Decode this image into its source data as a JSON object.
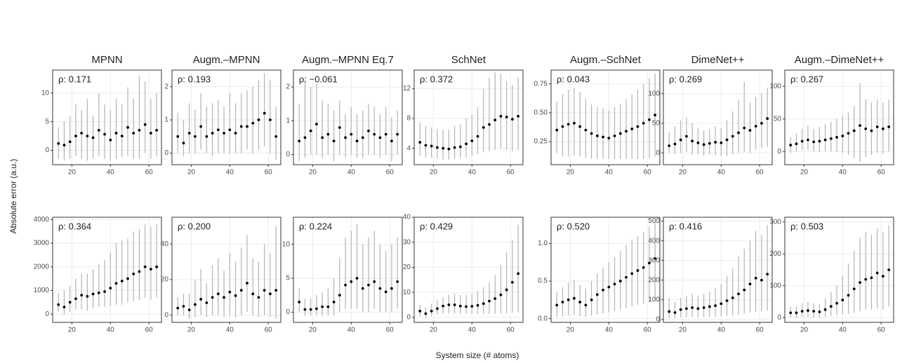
{
  "axis_labels": {
    "x": "System size (# atoms)",
    "y": "Absolute error (a.u.)"
  },
  "chart_data": [
    {
      "type": "scatter",
      "title": "MPNN",
      "annotation": "ρ: 0.171",
      "x": [
        13,
        16,
        19,
        22,
        25,
        28,
        31,
        34,
        37,
        40,
        43,
        46,
        49,
        52,
        55,
        58,
        61,
        64
      ],
      "values": [
        1.2,
        0.9,
        1.5,
        2.5,
        3.0,
        2.5,
        2.2,
        3.5,
        2.8,
        1.8,
        3.0,
        2.5,
        4.0,
        3.0,
        3.5,
        4.5,
        3.0,
        3.5
      ],
      "lower": [
        -1.5,
        -1.8,
        -1.5,
        -1,
        -1.5,
        -1.8,
        -1.5,
        -1,
        -1.5,
        -1.8,
        -1.5,
        -1.2,
        -1,
        -1.5,
        -1.5,
        -0.5,
        -1.5,
        -1
      ],
      "upper": [
        4,
        5,
        6,
        8,
        7,
        9,
        6,
        10,
        8,
        7,
        9,
        8,
        11,
        9,
        13,
        12,
        9,
        10
      ],
      "xlim": [
        10,
        66.5
      ],
      "xticks": [
        20,
        40,
        60
      ],
      "ylim": [
        -2.5,
        14
      ],
      "yticks": [
        0,
        5,
        10
      ]
    },
    {
      "type": "scatter",
      "title": "Augm.–MPNN",
      "annotation": "ρ: 0.193",
      "x": [
        13,
        16,
        19,
        22,
        25,
        28,
        31,
        34,
        37,
        40,
        43,
        46,
        49,
        52,
        55,
        58,
        61,
        64
      ],
      "values": [
        0.5,
        0.3,
        0.6,
        0.5,
        0.8,
        0.5,
        0.6,
        0.7,
        0.6,
        0.7,
        0.6,
        0.8,
        0.8,
        0.9,
        1.0,
        1.2,
        1.0,
        0.5
      ],
      "lower": [
        0,
        -0.1,
        0,
        0,
        0.1,
        0,
        -0.1,
        0,
        0,
        0,
        0,
        0,
        0.1,
        0,
        0.1,
        0.2,
        0,
        -0.2
      ],
      "upper": [
        1.2,
        1.0,
        1.5,
        1.3,
        1.8,
        1.4,
        1.5,
        1.6,
        1.4,
        1.8,
        1.5,
        1.8,
        1.9,
        2.0,
        2.2,
        2.4,
        2.2,
        1.4
      ],
      "xlim": [
        10,
        66.5
      ],
      "xticks": [
        20,
        40,
        60
      ],
      "ylim": [
        -0.35,
        2.5
      ],
      "yticks": [
        0,
        1,
        2
      ]
    },
    {
      "type": "scatter",
      "title": "Augm.–MPNN Eq.7",
      "annotation": "ρ: −0.061",
      "x": [
        13,
        16,
        19,
        22,
        25,
        28,
        31,
        34,
        37,
        40,
        43,
        46,
        49,
        52,
        55,
        58,
        61,
        64
      ],
      "values": [
        0.4,
        0.5,
        0.7,
        0.9,
        0.5,
        0.6,
        0.4,
        0.8,
        0.5,
        0.6,
        0.4,
        0.5,
        0.7,
        0.6,
        0.5,
        0.6,
        0.4,
        0.6
      ],
      "lower": [
        -0.2,
        -0.1,
        0,
        0,
        -0.1,
        0,
        -0.2,
        0,
        -0.1,
        0,
        -0.1,
        -0.1,
        0,
        0,
        -0.1,
        0,
        -0.2,
        0
      ],
      "upper": [
        1.5,
        2.2,
        2.0,
        2.1,
        1.6,
        1.5,
        1.3,
        1.6,
        1.2,
        1.4,
        1.2,
        1.3,
        1.5,
        1.4,
        1.2,
        1.4,
        1.1,
        1.3
      ],
      "xlim": [
        10,
        66.5
      ],
      "xticks": [
        20,
        40,
        60
      ],
      "ylim": [
        -0.3,
        2.5
      ],
      "yticks": [
        0,
        1,
        2
      ]
    },
    {
      "type": "scatter",
      "title": "SchNet",
      "annotation": "ρ: 0.372",
      "x": [
        13,
        16,
        19,
        22,
        25,
        28,
        31,
        34,
        37,
        40,
        43,
        46,
        49,
        52,
        55,
        58,
        61,
        64
      ],
      "values": [
        4.8,
        4.4,
        4.3,
        4.1,
        4.0,
        3.9,
        4.1,
        4.2,
        4.6,
        5.0,
        5.6,
        6.8,
        7.2,
        7.8,
        8.3,
        8.2,
        7.9,
        8.3
      ],
      "lower": [
        3,
        2.8,
        2.7,
        2.6,
        2.5,
        2.5,
        2.6,
        2.7,
        2.8,
        3.0,
        3.2,
        3.5,
        3.6,
        3.8,
        4.0,
        3.8,
        3.6,
        3.8
      ],
      "upper": [
        7.5,
        7.0,
        6.8,
        6.6,
        6.5,
        6.5,
        7.0,
        7.2,
        8.0,
        8.5,
        9.5,
        12,
        13.5,
        14.2,
        14,
        13,
        12.5,
        13.5
      ],
      "xlim": [
        10,
        66.5
      ],
      "xticks": [
        20,
        40,
        60
      ],
      "ylim": [
        1.8,
        14.5
      ],
      "yticks": [
        4,
        8,
        12
      ]
    },
    {
      "type": "scatter",
      "title": "Augm.–SchNet",
      "annotation": "ρ: 0.043",
      "x": [
        13,
        16,
        19,
        22,
        25,
        28,
        31,
        34,
        37,
        40,
        43,
        46,
        49,
        52,
        55,
        58,
        61,
        64
      ],
      "values": [
        0.35,
        0.38,
        0.4,
        0.41,
        0.38,
        0.35,
        0.32,
        0.3,
        0.29,
        0.28,
        0.3,
        0.32,
        0.34,
        0.36,
        0.38,
        0.41,
        0.44,
        0.48
      ],
      "lower": [
        0.15,
        0.12,
        0.12,
        0.13,
        0.12,
        0.11,
        0.1,
        0.1,
        0.1,
        0.1,
        0.1,
        0.1,
        0.1,
        0.1,
        0.1,
        0.1,
        0.11,
        0.12
      ],
      "upper": [
        0.6,
        0.66,
        0.7,
        0.72,
        0.68,
        0.62,
        0.57,
        0.55,
        0.54,
        0.52,
        0.55,
        0.58,
        0.62,
        0.66,
        0.7,
        0.75,
        0.8,
        0.84
      ],
      "xlim": [
        10,
        66.5
      ],
      "xticks": [
        20,
        40,
        60
      ],
      "ylim": [
        0.05,
        0.87
      ],
      "yticks": [
        0.25,
        {
          "value": 0.5,
          "label": "0.50"
        },
        0.75
      ]
    },
    {
      "type": "scatter",
      "title": "DimeNet++",
      "annotation": "ρ: 0.269",
      "x": [
        13,
        16,
        19,
        22,
        25,
        28,
        31,
        34,
        37,
        40,
        43,
        46,
        49,
        52,
        55,
        58,
        61,
        64
      ],
      "values": [
        12,
        15,
        22,
        28,
        20,
        17,
        14,
        16,
        18,
        17,
        22,
        28,
        34,
        42,
        38,
        45,
        50,
        58
      ],
      "lower": [
        0,
        -2,
        0,
        2,
        -3,
        -2,
        -5,
        -3,
        -4,
        -5,
        -5,
        -2,
        0,
        2,
        0,
        5,
        8,
        10
      ],
      "upper": [
        35,
        45,
        55,
        60,
        50,
        42,
        38,
        40,
        45,
        42,
        55,
        70,
        90,
        120,
        85,
        95,
        100,
        110
      ],
      "xlim": [
        10,
        66.5
      ],
      "xticks": [
        20,
        40,
        60
      ],
      "ylim": [
        -20,
        140
      ],
      "yticks": [
        0,
        50,
        100
      ]
    },
    {
      "type": "scatter",
      "title": "Augm.–DimeNet++",
      "annotation": "ρ: 0.267",
      "x": [
        13,
        16,
        19,
        22,
        25,
        28,
        31,
        34,
        37,
        40,
        43,
        46,
        49,
        52,
        55,
        58,
        61,
        64
      ],
      "values": [
        10,
        12,
        16,
        18,
        15,
        16,
        18,
        20,
        22,
        24,
        28,
        32,
        40,
        35,
        32,
        38,
        35,
        38
      ],
      "lower": [
        -2,
        0,
        2,
        3,
        0,
        0,
        0,
        0,
        0,
        -2,
        -5,
        -10,
        -15,
        -8,
        -5,
        -2,
        -3,
        0
      ],
      "upper": [
        22,
        28,
        35,
        40,
        35,
        38,
        42,
        45,
        50,
        55,
        60,
        70,
        105,
        80,
        75,
        80,
        75,
        80
      ],
      "xlim": [
        10,
        66.5
      ],
      "xticks": [
        20,
        40,
        60
      ],
      "ylim": [
        -20,
        125
      ],
      "yticks": [
        0,
        50,
        100
      ]
    },
    {
      "type": "scatter",
      "annotation": "ρ: 0.364",
      "x": [
        13,
        16,
        19,
        22,
        25,
        28,
        31,
        34,
        37,
        40,
        43,
        46,
        49,
        52,
        55,
        58,
        61,
        64
      ],
      "values": [
        400,
        300,
        500,
        650,
        800,
        750,
        850,
        900,
        950,
        1100,
        1300,
        1400,
        1500,
        1700,
        1800,
        2000,
        1900,
        2000
      ],
      "lower": [
        100,
        0,
        100,
        200,
        200,
        150,
        250,
        300,
        300,
        350,
        400,
        400,
        500,
        550,
        600,
        700,
        600,
        700
      ],
      "upper": [
        900,
        1000,
        1200,
        1500,
        1700,
        1700,
        1900,
        2100,
        2300,
        2600,
        3000,
        3100,
        3200,
        3500,
        3600,
        3800,
        3700,
        3800
      ],
      "xlim": [
        10,
        66.5
      ],
      "xticks": [
        20,
        40,
        60
      ],
      "ylim": [
        -350,
        4100
      ],
      "yticks": [
        0,
        1000,
        2000,
        3000,
        4000
      ]
    },
    {
      "type": "scatter",
      "annotation": "ρ: 0.200",
      "x": [
        13,
        16,
        19,
        22,
        25,
        28,
        31,
        34,
        37,
        40,
        43,
        46,
        49,
        52,
        55,
        58,
        61,
        64
      ],
      "values": [
        4,
        5,
        3,
        6,
        9,
        7,
        10,
        12,
        10,
        13,
        11,
        14,
        18,
        12,
        10,
        14,
        12,
        14
      ],
      "lower": [
        0,
        0,
        -2,
        -1,
        0,
        -1,
        0,
        0,
        -1,
        0,
        -1,
        0,
        2,
        0,
        -1,
        0,
        -1,
        -2
      ],
      "upper": [
        10,
        12,
        12,
        20,
        26,
        18,
        28,
        32,
        25,
        35,
        30,
        38,
        45,
        32,
        30,
        40,
        35,
        50
      ],
      "xlim": [
        10,
        66.5
      ],
      "xticks": [
        20,
        40,
        60
      ],
      "ylim": [
        -4,
        55
      ],
      "yticks": [
        0,
        20,
        40
      ]
    },
    {
      "type": "scatter",
      "annotation": "ρ: 0.224",
      "x": [
        13,
        16,
        19,
        22,
        25,
        28,
        31,
        34,
        37,
        40,
        43,
        46,
        49,
        52,
        55,
        58,
        61,
        64
      ],
      "values": [
        1.5,
        0.4,
        0.4,
        0.5,
        0.8,
        0.8,
        1.5,
        2.5,
        4,
        4.5,
        5,
        3.5,
        4,
        4.5,
        3.5,
        3,
        3.5,
        4.5
      ],
      "lower": [
        0,
        -0.5,
        -0.5,
        -0.5,
        -0.5,
        -0.5,
        -0.5,
        0,
        0.5,
        0.5,
        0.5,
        0,
        0,
        0.5,
        0,
        0,
        0,
        0.5
      ],
      "upper": [
        3.5,
        2,
        2,
        2.5,
        3,
        3.5,
        5,
        8,
        11,
        12,
        13,
        10,
        11,
        12,
        10,
        9,
        10,
        11
      ],
      "xlim": [
        10,
        66.5
      ],
      "xticks": [
        20,
        40,
        60
      ],
      "ylim": [
        -1.5,
        14
      ],
      "yticks": [
        0,
        5,
        10
      ]
    },
    {
      "type": "scatter",
      "annotation": "ρ: 0.429",
      "x": [
        13,
        16,
        19,
        22,
        25,
        28,
        31,
        34,
        37,
        40,
        43,
        46,
        49,
        52,
        55,
        58,
        61,
        64
      ],
      "values": [
        2.5,
        1.5,
        2.5,
        3.5,
        4.5,
        5.0,
        5.0,
        4.5,
        4.3,
        4.4,
        4.8,
        5.5,
        6.5,
        7.5,
        9.0,
        11,
        14,
        17.5
      ],
      "lower": [
        0.5,
        0,
        0.5,
        1,
        1.5,
        1.5,
        1.5,
        1.4,
        1.3,
        1.3,
        1.3,
        1.3,
        1.3,
        1.4,
        1.5,
        1.6,
        1.8,
        2
      ],
      "upper": [
        5,
        4,
        5.5,
        7,
        8,
        9,
        9.5,
        9,
        9,
        9.5,
        10.5,
        12,
        14,
        17,
        21,
        26,
        31,
        37
      ],
      "xlim": [
        10,
        66.5
      ],
      "xticks": [
        20,
        40,
        60
      ],
      "ylim": [
        -2,
        40
      ],
      "yticks": [
        0,
        10,
        20,
        30,
        40
      ]
    },
    {
      "type": "scatter",
      "annotation": "ρ: 0.520",
      "x": [
        13,
        16,
        19,
        22,
        25,
        28,
        31,
        34,
        37,
        40,
        43,
        46,
        49,
        52,
        55,
        58,
        61,
        64
      ],
      "values": [
        0.18,
        0.22,
        0.25,
        0.27,
        0.22,
        0.18,
        0.25,
        0.32,
        0.38,
        0.42,
        0.46,
        0.5,
        0.55,
        0.6,
        0.64,
        0.68,
        0.74,
        0.8
      ],
      "lower": [
        0.02,
        0.03,
        0.04,
        0.05,
        0.03,
        0.02,
        0.04,
        0.06,
        0.07,
        0.08,
        0.1,
        0.12,
        0.14,
        0.16,
        0.18,
        0.2,
        0.22,
        0.25
      ],
      "upper": [
        0.36,
        0.42,
        0.48,
        0.52,
        0.45,
        0.4,
        0.5,
        0.6,
        0.68,
        0.75,
        0.82,
        0.9,
        0.98,
        1.05,
        1.1,
        1.15,
        1.22,
        1.3
      ],
      "xlim": [
        10,
        66.5
      ],
      "xticks": [
        20,
        40,
        60
      ],
      "ylim": [
        -0.05,
        1.35
      ],
      "yticks": [
        {
          "value": 0,
          "label": "0.0"
        },
        0.5,
        {
          "value": 1,
          "label": "1.0"
        }
      ]
    },
    {
      "type": "scatter",
      "annotation": "ρ: 0.416",
      "x": [
        13,
        16,
        19,
        22,
        25,
        28,
        31,
        34,
        37,
        40,
        43,
        46,
        49,
        52,
        55,
        58,
        61,
        64
      ],
      "values": [
        40,
        35,
        50,
        55,
        60,
        55,
        60,
        65,
        70,
        80,
        95,
        110,
        130,
        150,
        180,
        210,
        200,
        230
      ],
      "lower": [
        5,
        5,
        10,
        10,
        12,
        10,
        12,
        12,
        14,
        15,
        18,
        20,
        25,
        30,
        35,
        40,
        40,
        45
      ],
      "upper": [
        110,
        90,
        110,
        120,
        130,
        120,
        130,
        140,
        160,
        180,
        220,
        260,
        320,
        360,
        400,
        450,
        430,
        480
      ],
      "xlim": [
        10,
        66.5
      ],
      "xticks": [
        20,
        40,
        60
      ],
      "ylim": [
        -15,
        520
      ],
      "yticks": [
        0,
        100,
        200,
        300,
        400,
        500
      ]
    },
    {
      "type": "scatter",
      "annotation": "ρ: 0.503",
      "x": [
        13,
        16,
        19,
        22,
        25,
        28,
        31,
        34,
        37,
        40,
        43,
        46,
        49,
        52,
        55,
        58,
        61,
        64
      ],
      "values": [
        15,
        15,
        20,
        22,
        20,
        18,
        25,
        35,
        45,
        55,
        70,
        90,
        110,
        120,
        125,
        140,
        130,
        150
      ],
      "lower": [
        0,
        0,
        2,
        2,
        0,
        0,
        2,
        5,
        8,
        10,
        12,
        15,
        20,
        25,
        25,
        30,
        25,
        35
      ],
      "upper": [
        35,
        35,
        45,
        50,
        45,
        42,
        60,
        80,
        100,
        130,
        170,
        210,
        250,
        270,
        260,
        280,
        270,
        290
      ],
      "xlim": [
        10,
        66.5
      ],
      "xticks": [
        20,
        40,
        60
      ],
      "ylim": [
        -15,
        315
      ],
      "yticks": [
        0,
        100,
        200,
        300
      ]
    }
  ]
}
